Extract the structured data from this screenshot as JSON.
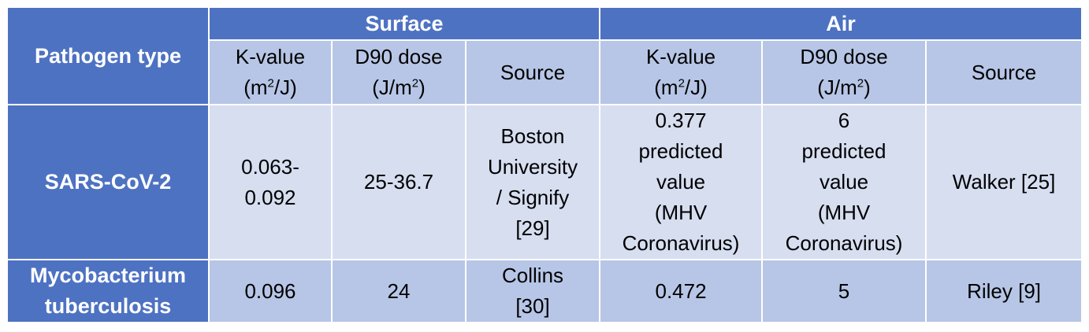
{
  "table": {
    "corner_label": "Pathogen type",
    "groups": {
      "surface": "Surface",
      "air": "Air"
    },
    "subheaders": {
      "k_value_line1": "K-value",
      "k_value_line2_pre": "(m",
      "k_value_sup": "2",
      "k_value_line2_post": "/J)",
      "d90_line1": "D90 dose",
      "d90_line2_pre": "(J/m",
      "d90_sup": "2",
      "d90_line2_post": ")",
      "source": "Source"
    },
    "rows": [
      {
        "pathogen": "SARS-CoV-2",
        "surface_k": [
          "0.063-",
          "0.092"
        ],
        "surface_d90": "25-36.7",
        "surface_source": [
          "Boston",
          "University",
          "/ Signify",
          "[29]"
        ],
        "air_k": [
          "0.377",
          "predicted",
          "value",
          "(MHV",
          "Coronavirus)"
        ],
        "air_d90": [
          "6",
          "predicted",
          "value",
          "(MHV",
          "Coronavirus)"
        ],
        "air_source": "Walker [25]"
      },
      {
        "pathogen": [
          "Mycobacterium",
          "tuberculosis"
        ],
        "surface_k": "0.096",
        "surface_d90": "24",
        "surface_source": [
          "Collins",
          "[30]"
        ],
        "air_k": "0.472",
        "air_d90": "5",
        "air_source": "Riley [9]"
      }
    ]
  },
  "colors": {
    "header_blue": "#4e72c2",
    "subheader_light": "#b7c6e6",
    "row_pale": "#d6def0"
  }
}
